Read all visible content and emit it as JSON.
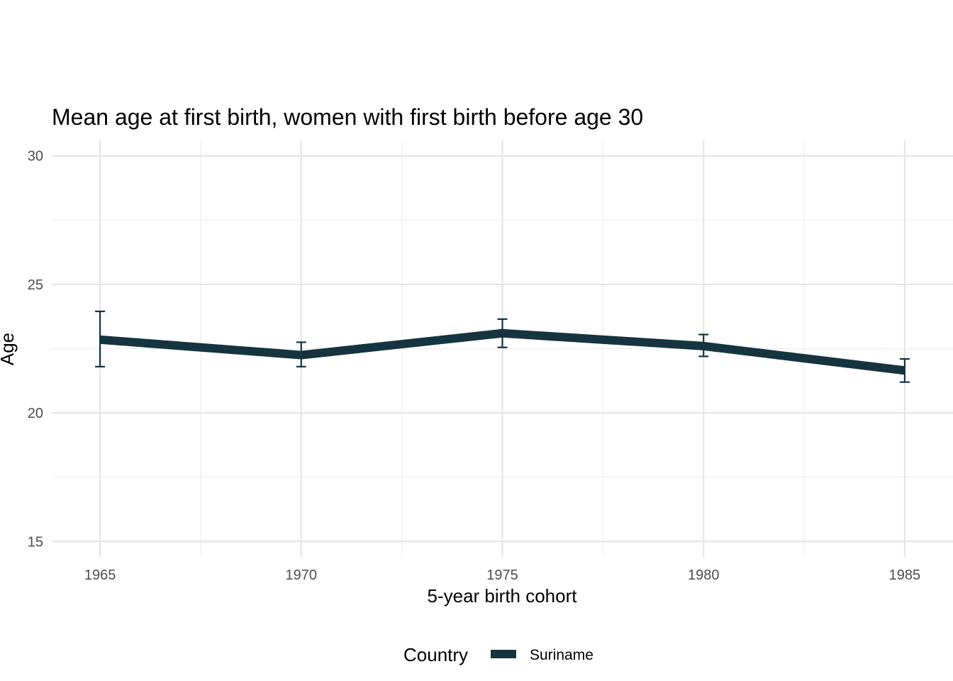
{
  "chart_data": {
    "type": "line",
    "title": "Mean age at first birth, women with first birth before age 30",
    "xlabel": "5-year birth cohort",
    "ylabel": "Age",
    "x": [
      1965,
      1970,
      1975,
      1980,
      1985
    ],
    "xlim": [
      1963.8,
      1986.2
    ],
    "ylim": [
      14.4,
      30.6
    ],
    "y_ticks": [
      15,
      20,
      25,
      30
    ],
    "x_ticks": [
      1965,
      1970,
      1975,
      1980,
      1985
    ],
    "grid": true,
    "legend": {
      "title": "Country",
      "position": "bottom"
    },
    "series": [
      {
        "name": "Suriname",
        "color": "#15343f",
        "values": [
          22.85,
          22.25,
          23.1,
          22.6,
          21.65
        ],
        "error_low": [
          21.8,
          21.8,
          22.55,
          22.2,
          21.2
        ],
        "error_high": [
          23.95,
          22.75,
          23.65,
          23.05,
          22.1
        ]
      }
    ]
  }
}
